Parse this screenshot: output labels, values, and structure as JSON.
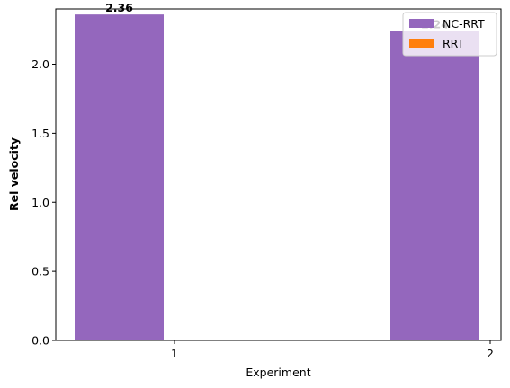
{
  "chart_data": {
    "type": "bar",
    "categories": [
      "1",
      "2"
    ],
    "series": [
      {
        "name": "NC-RRT",
        "values": [
          2.36,
          2.24
        ],
        "color": "#9467bd"
      },
      {
        "name": "RRT",
        "values": [
          0,
          0
        ],
        "color": "#ff7f0e"
      }
    ],
    "data_labels": [
      "2.36",
      "2.24"
    ],
    "xlabel": "Experiment",
    "ylabel": "Rel velocity",
    "ylim": [
      0,
      2.4
    ],
    "yticks": [
      "0.0",
      "0.5",
      "1.0",
      "1.5",
      "2.0"
    ],
    "grid": false,
    "legend_position": "top-right"
  }
}
